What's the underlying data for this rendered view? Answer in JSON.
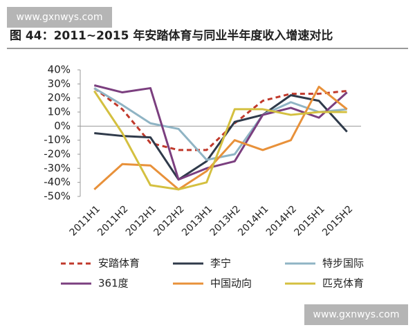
{
  "watermarks": [
    "www.gxnwys.com",
    "www.gxnwys.com"
  ],
  "chart_data": {
    "type": "line",
    "title": "图 44：2011~2015 年安踏体育与同业半年度收入增速对比",
    "categories": [
      "2011H1",
      "2011H2",
      "2012H1",
      "2012H2",
      "2013H1",
      "2013H2",
      "2014H1",
      "2014H2",
      "2015H1",
      "2015H2"
    ],
    "ylim": [
      -50,
      40
    ],
    "yticks": [
      {
        "value": 40,
        "label": "40%"
      },
      {
        "value": 30,
        "label": "30%"
      },
      {
        "value": 20,
        "label": "20%"
      },
      {
        "value": 10,
        "label": "10%"
      },
      {
        "value": 0,
        "label": "0%"
      },
      {
        "value": -10,
        "label": "-10%"
      },
      {
        "value": -20,
        "label": "-20%"
      },
      {
        "value": -30,
        "label": "-30%"
      },
      {
        "value": -40,
        "label": "-40%"
      },
      {
        "value": -50,
        "label": "-50%"
      }
    ],
    "series": [
      {
        "name": "安踏体育",
        "color": "#c0392b",
        "dashed": true,
        "values": [
          27,
          12,
          -12,
          -17,
          -17,
          2,
          18,
          23,
          23,
          25
        ]
      },
      {
        "name": "李宁",
        "color": "#2f3a4a",
        "values": [
          -5,
          -7,
          -8,
          -38,
          -25,
          3,
          8,
          22,
          18,
          -4
        ]
      },
      {
        "name": "特步国际",
        "color": "#8fb4c4",
        "values": [
          27,
          15,
          2,
          -2,
          -24,
          -20,
          8,
          17,
          10,
          12
        ]
      },
      {
        "name": "361度",
        "color": "#7b3f7f",
        "values": [
          29,
          24,
          27,
          -38,
          -30,
          -25,
          8,
          13,
          6,
          24
        ]
      },
      {
        "name": "中国动向",
        "color": "#e8913a",
        "values": [
          -45,
          -27,
          -28,
          -45,
          -32,
          -10,
          -17,
          -10,
          28,
          12
        ]
      },
      {
        "name": "匹克体育",
        "color": "#d4c040",
        "values": [
          25,
          -5,
          -42,
          -45,
          -40,
          12,
          12,
          8,
          10,
          10
        ]
      }
    ]
  }
}
